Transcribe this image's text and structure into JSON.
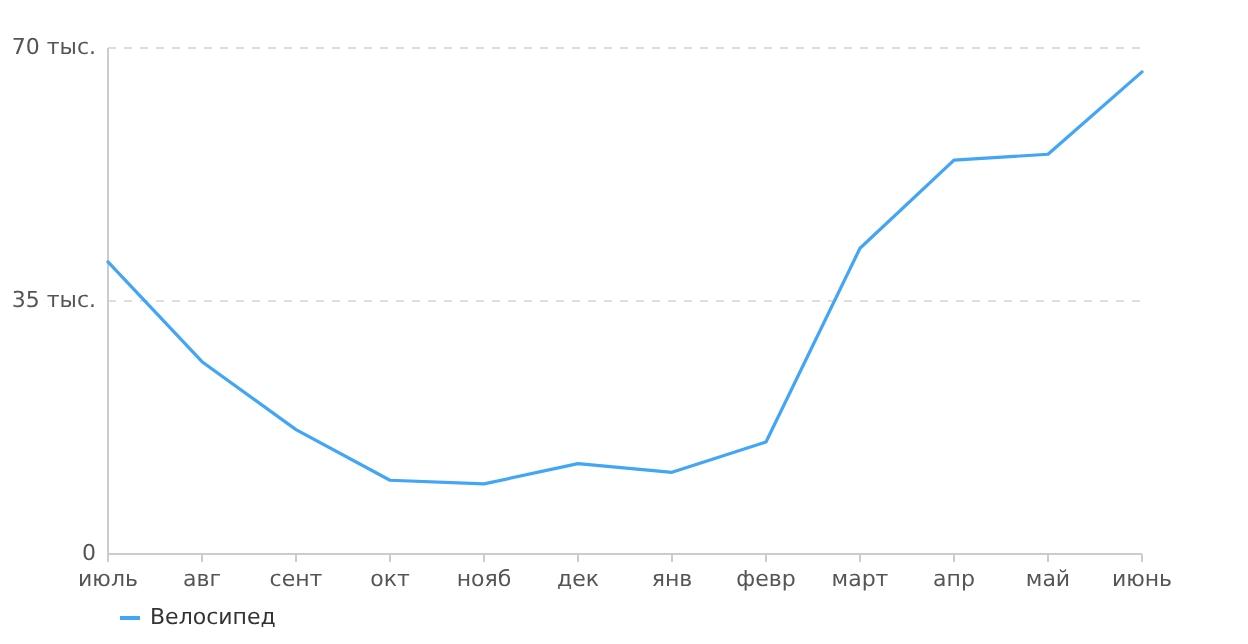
{
  "chart_data": {
    "type": "line",
    "categories": [
      "июль",
      "авг",
      "сент",
      "окт",
      "нояб",
      "дек",
      "янв",
      "февр",
      "март",
      "апр",
      "май",
      "июнь"
    ],
    "series": [
      {
        "name": "Велосипед",
        "color": "#42a5f5",
        "values": [
          40.4,
          26.6,
          17.2,
          10.2,
          9.7,
          12.5,
          11.3,
          15.5,
          42.3,
          54.5,
          55.3,
          66.7
        ]
      }
    ],
    "ylim": [
      0,
      70
    ],
    "yticks": [
      0,
      {
        "value": 35,
        "label": "35 тыс."
      },
      {
        "value": 70,
        "label": "70 тыс."
      }
    ],
    "grid": "y",
    "legend": "bottom left",
    "marker": "none",
    "line_style": "solid"
  }
}
